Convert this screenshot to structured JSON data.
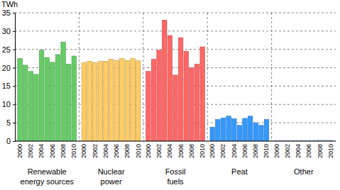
{
  "chart_data": {
    "type": "bar",
    "y_label": "TWh",
    "categories": [
      "2000",
      null,
      "2002",
      null,
      "2004",
      null,
      "2006",
      null,
      "2008",
      null,
      "2010"
    ],
    "series": [
      {
        "name": "Renewable energy sources",
        "color": "#66cc66",
        "values": [
          22.5,
          20.7,
          19.0,
          18.2,
          24.8,
          22.8,
          21.5,
          23.6,
          27.0,
          21.0,
          23.2
        ]
      },
      {
        "name": "Nuclear power",
        "color": "#ffcc66",
        "values": [
          21.4,
          21.8,
          21.4,
          21.8,
          21.8,
          22.3,
          22.0,
          22.5,
          22.0,
          22.6,
          21.9
        ]
      },
      {
        "name": "Fossil fuels",
        "color": "#ff6666",
        "values": [
          19.0,
          22.3,
          24.8,
          33.0,
          28.8,
          18.0,
          28.2,
          24.5,
          20.0,
          21.0,
          25.7
        ]
      },
      {
        "name": "Peat",
        "color": "#3399ff",
        "values": [
          3.8,
          5.9,
          6.3,
          6.8,
          6.1,
          4.3,
          6.2,
          6.8,
          5.0,
          4.3,
          5.9
        ]
      },
      {
        "name": "Other",
        "color": "#99ccff",
        "values": [
          0.1,
          0.1,
          0.1,
          0.1,
          0.1,
          0.1,
          0.1,
          0.1,
          0.2,
          0.2,
          0.2
        ]
      }
    ],
    "ylim": [
      0,
      35
    ],
    "yticks": [
      0,
      5,
      10,
      15,
      20,
      25,
      30,
      35
    ],
    "grid": true
  }
}
